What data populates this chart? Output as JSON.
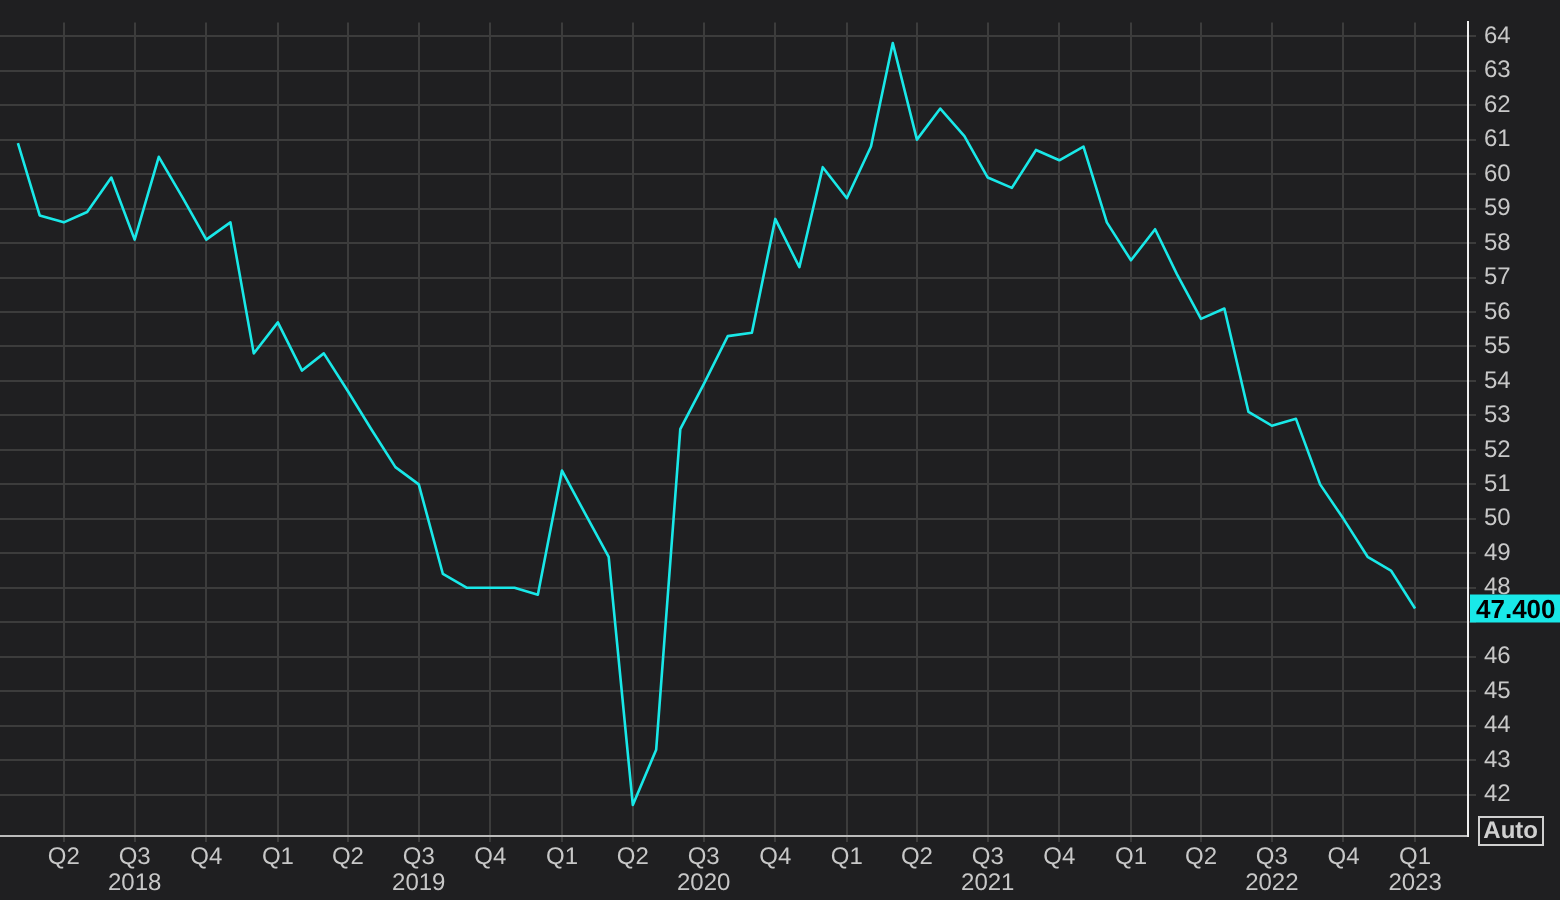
{
  "chart_data": {
    "type": "line",
    "x": [
      "2018-02",
      "2018-03",
      "2018-04",
      "2018-05",
      "2018-06",
      "2018-07",
      "2018-08",
      "2018-09",
      "2018-10",
      "2018-11",
      "2018-12",
      "2019-01",
      "2019-02",
      "2019-03",
      "2019-04",
      "2019-05",
      "2019-06",
      "2019-07",
      "2019-08",
      "2019-09",
      "2019-10",
      "2019-11",
      "2019-12",
      "2020-01",
      "2020-02",
      "2020-03",
      "2020-04",
      "2020-05",
      "2020-06",
      "2020-07",
      "2020-08",
      "2020-09",
      "2020-10",
      "2020-11",
      "2020-12",
      "2021-01",
      "2021-02",
      "2021-03",
      "2021-04",
      "2021-05",
      "2021-06",
      "2021-07",
      "2021-08",
      "2021-09",
      "2021-10",
      "2021-11",
      "2021-12",
      "2022-01",
      "2022-02",
      "2022-03",
      "2022-04",
      "2022-05",
      "2022-06",
      "2022-07",
      "2022-08",
      "2022-09",
      "2022-10",
      "2022-11",
      "2022-12",
      "2023-01"
    ],
    "series": [
      {
        "color": "#19e8e8",
        "values": [
          60.9,
          58.8,
          58.6,
          58.9,
          59.9,
          58.1,
          60.5,
          59.3,
          58.1,
          58.6,
          54.8,
          55.7,
          54.3,
          54.8,
          53.7,
          52.6,
          51.5,
          51.0,
          48.4,
          48.0,
          48.0,
          48.0,
          47.8,
          51.4,
          50.1,
          48.9,
          41.7,
          43.3,
          52.6,
          53.9,
          55.3,
          55.4,
          58.7,
          57.3,
          60.2,
          59.3,
          60.8,
          63.8,
          61.0,
          61.9,
          61.1,
          59.9,
          59.6,
          60.7,
          60.4,
          60.8,
          58.6,
          57.5,
          58.4,
          57.1,
          55.8,
          56.1,
          53.1,
          52.7,
          52.9,
          51.0,
          50.0,
          48.9,
          48.5,
          47.4
        ]
      }
    ],
    "xlim": [
      "2018-01-09",
      "2023-03-10"
    ],
    "xticks": [
      {
        "value": "2018-04",
        "label": "Q2"
      },
      {
        "value": "2018-07",
        "label": "Q3\n2018"
      },
      {
        "value": "2018-10",
        "label": "Q4"
      },
      {
        "value": "2019-01",
        "label": "Q1"
      },
      {
        "value": "2019-04",
        "label": "Q2"
      },
      {
        "value": "2019-07",
        "label": "Q3\n2019"
      },
      {
        "value": "2019-10",
        "label": "Q4"
      },
      {
        "value": "2020-01",
        "label": "Q1"
      },
      {
        "value": "2020-04",
        "label": "Q2"
      },
      {
        "value": "2020-07",
        "label": "Q3\n2020"
      },
      {
        "value": "2020-10",
        "label": "Q4"
      },
      {
        "value": "2021-01",
        "label": "Q1"
      },
      {
        "value": "2021-04",
        "label": "Q2"
      },
      {
        "value": "2021-07",
        "label": "Q3\n2021"
      },
      {
        "value": "2021-10",
        "label": "Q4"
      },
      {
        "value": "2022-01",
        "label": "Q1"
      },
      {
        "value": "2022-04",
        "label": "Q2"
      },
      {
        "value": "2022-07",
        "label": "Q3\n2022"
      },
      {
        "value": "2022-10",
        "label": "Q4"
      },
      {
        "value": "2023-01",
        "label": "Q1\n2023"
      }
    ],
    "ylim": [
      40.8,
      64.4
    ],
    "yticks": [
      42,
      43,
      44,
      45,
      46,
      {
        "value": 47,
        "label": null
      },
      48,
      49,
      50,
      51,
      52,
      53,
      54,
      55,
      56,
      57,
      58,
      59,
      60,
      61,
      62,
      63,
      64
    ],
    "grid": true,
    "marker": "none",
    "line_style": "solid",
    "annotations": [
      {
        "text": "47.400",
        "x": "2023-01",
        "y": 47.4
      },
      "Auto"
    ]
  }
}
